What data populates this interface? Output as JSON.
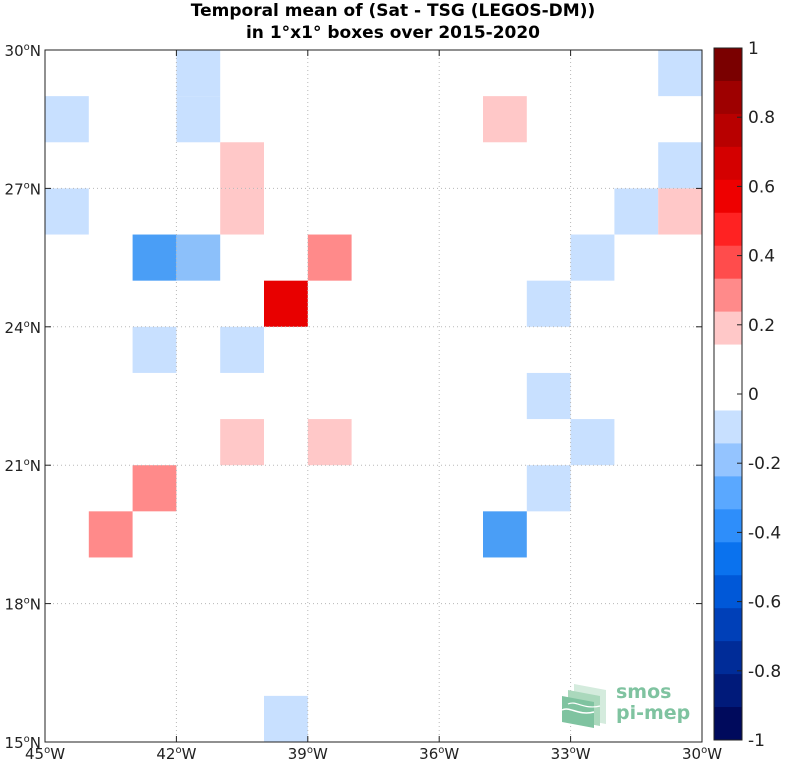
{
  "chart_data": {
    "type": "heatmap",
    "title": [
      "Temporal mean of (Sat - TSG (LEGOS-DM))",
      "in 1°x1° boxes over 2015-2020"
    ],
    "xlim": [
      -45,
      -30
    ],
    "ylim": [
      15,
      30
    ],
    "xticks": [
      {
        "value": -45,
        "deg": "45",
        "hemi": "W"
      },
      {
        "value": -42,
        "deg": "42",
        "hemi": "W"
      },
      {
        "value": -39,
        "deg": "39",
        "hemi": "W"
      },
      {
        "value": -36,
        "deg": "36",
        "hemi": "W"
      },
      {
        "value": -33,
        "deg": "33",
        "hemi": "W"
      },
      {
        "value": -30,
        "deg": "30",
        "hemi": "W"
      }
    ],
    "yticks": [
      {
        "value": 30,
        "deg": "30",
        "hemi": "N"
      },
      {
        "value": 27,
        "deg": "27",
        "hemi": "N"
      },
      {
        "value": 24,
        "deg": "24",
        "hemi": "N"
      },
      {
        "value": 21,
        "deg": "21",
        "hemi": "N"
      },
      {
        "value": 18,
        "deg": "18",
        "hemi": "N"
      },
      {
        "value": 15,
        "deg": "15",
        "hemi": "N"
      }
    ],
    "grid": true,
    "cells": [
      {
        "lon": -42,
        "lat": 29,
        "value": -0.1
      },
      {
        "lon": -31,
        "lat": 29,
        "value": -0.1
      },
      {
        "lon": -45,
        "lat": 28,
        "value": -0.1
      },
      {
        "lon": -42,
        "lat": 28,
        "value": -0.1
      },
      {
        "lon": -35,
        "lat": 28,
        "value": 0.1
      },
      {
        "lon": -41,
        "lat": 27,
        "value": 0.1
      },
      {
        "lon": -31,
        "lat": 27,
        "value": -0.1
      },
      {
        "lon": -45,
        "lat": 26,
        "value": -0.1
      },
      {
        "lon": -41,
        "lat": 26,
        "value": 0.1
      },
      {
        "lon": -32,
        "lat": 26,
        "value": -0.1
      },
      {
        "lon": -31,
        "lat": 26,
        "value": 0.1
      },
      {
        "lon": -43,
        "lat": 25,
        "value": -0.35
      },
      {
        "lon": -42,
        "lat": 25,
        "value": -0.25
      },
      {
        "lon": -39,
        "lat": 25,
        "value": 0.25
      },
      {
        "lon": -33,
        "lat": 25,
        "value": -0.1
      },
      {
        "lon": -40,
        "lat": 24,
        "value": 0.55
      },
      {
        "lon": -34,
        "lat": 24,
        "value": -0.1
      },
      {
        "lon": -43,
        "lat": 23,
        "value": -0.1
      },
      {
        "lon": -41,
        "lat": 23,
        "value": -0.1
      },
      {
        "lon": -34,
        "lat": 22,
        "value": -0.1
      },
      {
        "lon": -41,
        "lat": 21,
        "value": 0.1
      },
      {
        "lon": -39,
        "lat": 21,
        "value": 0.1
      },
      {
        "lon": -33,
        "lat": 21,
        "value": -0.1
      },
      {
        "lon": -43,
        "lat": 20,
        "value": 0.25
      },
      {
        "lon": -34,
        "lat": 20,
        "value": -0.1
      },
      {
        "lon": -44,
        "lat": 19,
        "value": 0.25
      },
      {
        "lon": -35,
        "lat": 19,
        "value": -0.35
      },
      {
        "lon": -40,
        "lat": 15,
        "value": -0.1
      }
    ],
    "colorbar": {
      "range": [
        -1,
        1
      ],
      "labels": [
        "1",
        "0.8",
        "0.6",
        "0.4",
        "0.2",
        "0",
        "-0.2",
        "-0.4",
        "-0.6",
        "-0.8",
        "-1"
      ],
      "label_values": [
        1,
        0.8,
        0.6,
        0.4,
        0.2,
        0,
        -0.2,
        -0.4,
        -0.6,
        -0.8,
        -1
      ],
      "colors_top_to_bottom": [
        "#7a0000",
        "#9e0000",
        "#b80000",
        "#d40000",
        "#ee0000",
        "#ff2222",
        "#ff4c4c",
        "#ff8a8a",
        "#ffc8c8",
        "#ffffff",
        "#ffffff",
        "#c8e0ff",
        "#94c4ff",
        "#5aa8ff",
        "#2e8efa",
        "#0a72ee",
        "#0058d8",
        "#0040b8",
        "#002c98",
        "#001a7a",
        "#000a5c"
      ]
    },
    "cell_colors": {
      "-0.35": "#4a9ef6",
      "-0.25": "#8cc0fa",
      "-0.1": "#c8e0ff",
      "0.1": "#ffc8c8",
      "0.25": "#ff8a8a",
      "0.55": "#e80000"
    }
  },
  "logo": {
    "line1": "smos",
    "line2": "pi-mep"
  }
}
